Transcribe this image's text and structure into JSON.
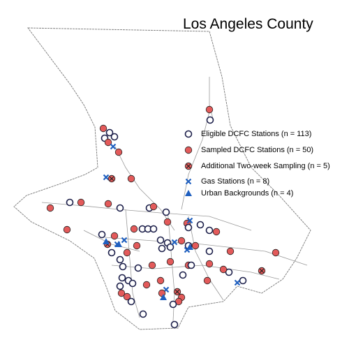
{
  "map": {
    "title": "Los Angeles County",
    "legend": [
      "Eligible DCFC Stations (n = 113)",
      "Sampled DCFC Stations (n = 50)",
      "Additional Two-week Sampling (n = 5)",
      "Gas Stations (n = 8)",
      "Urban Backgrounds (n = 4)"
    ]
  }
}
